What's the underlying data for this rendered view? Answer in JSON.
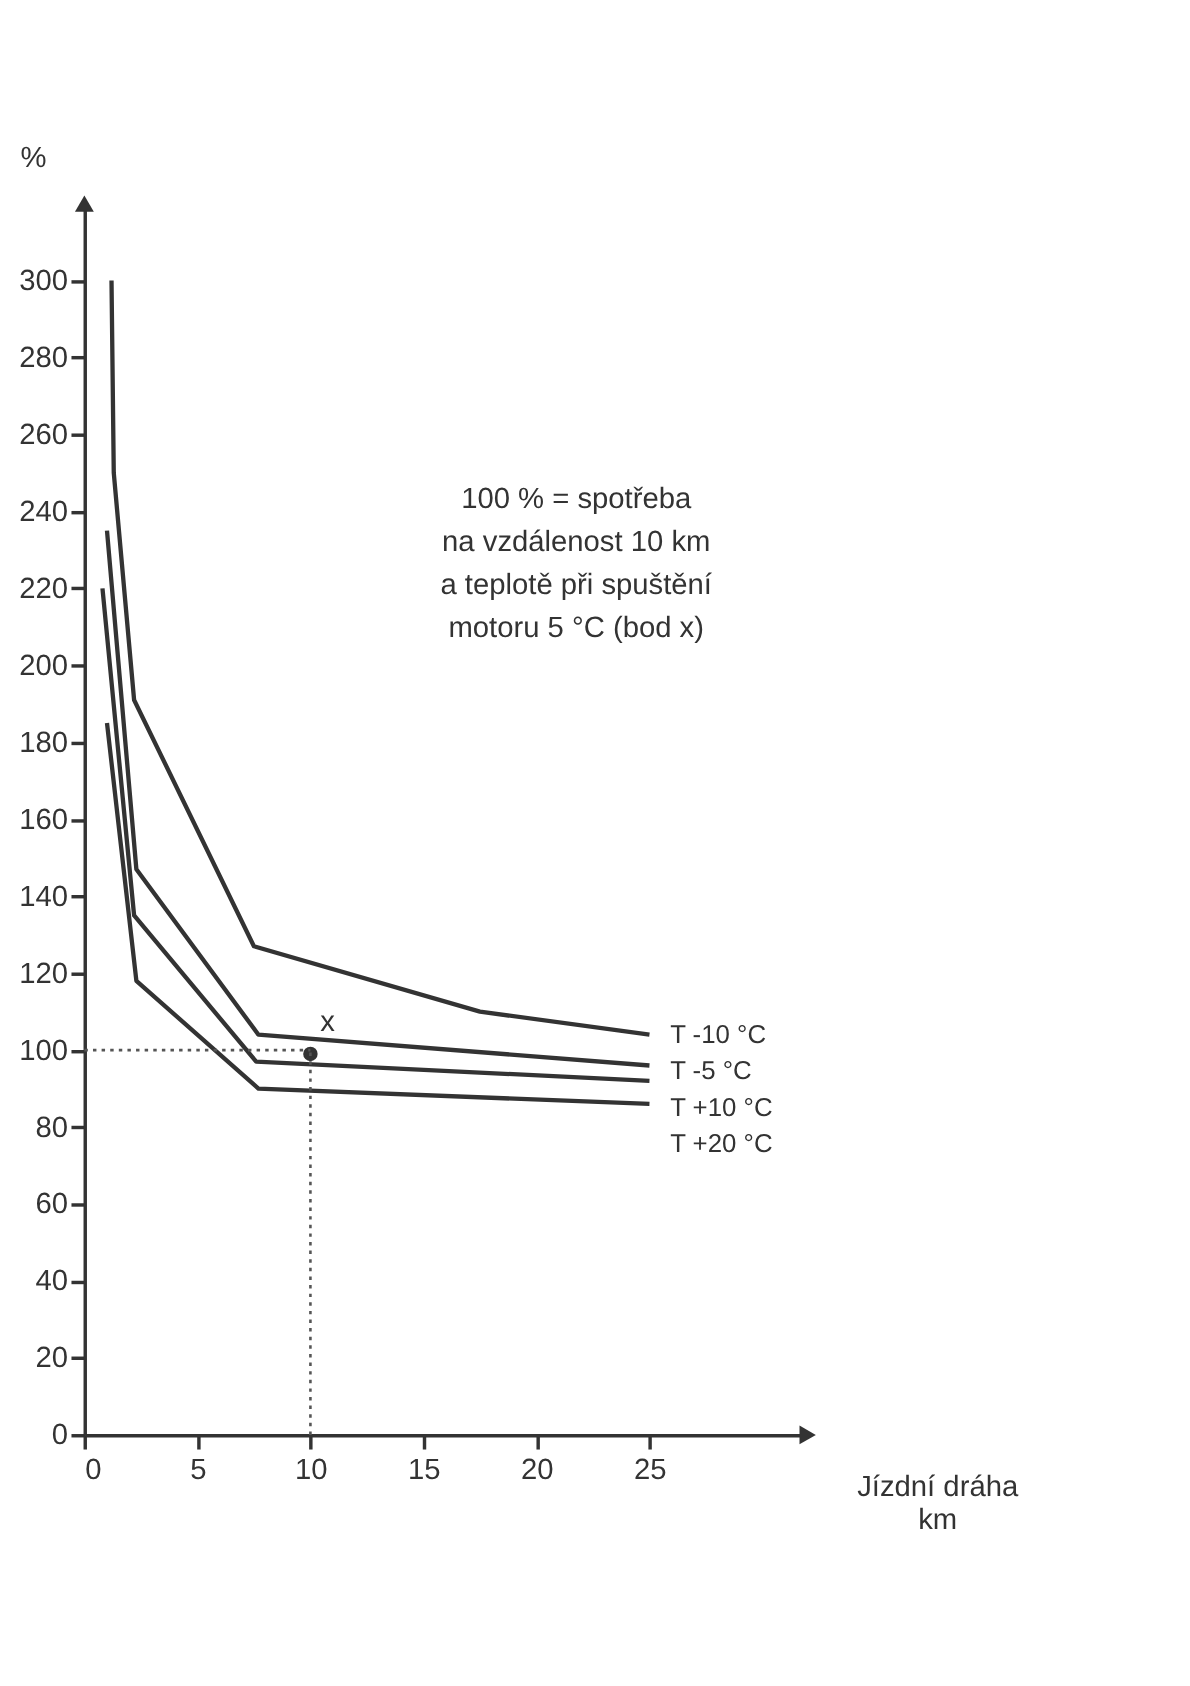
{
  "chart_data": {
    "type": "line",
    "xlabel": "Jízdní dráha\nkm",
    "ylabel": "%",
    "xlim": [
      0,
      32
    ],
    "ylim": [
      0,
      320
    ],
    "xticks": [
      0,
      5,
      10,
      15,
      20,
      25
    ],
    "yticks": [
      0,
      20,
      40,
      60,
      80,
      100,
      120,
      140,
      160,
      180,
      200,
      220,
      240,
      260,
      280,
      300
    ],
    "grid": false,
    "marker": "none",
    "line_style": "solid",
    "series": [
      {
        "name": "T -10 °C",
        "color": "#333333",
        "x": [
          1.2,
          1.3,
          2.2,
          7.5,
          17.5,
          25
        ],
        "values": [
          300,
          250,
          191,
          127,
          110,
          104
        ]
      },
      {
        "name": "T -5 °C",
        "color": "#333333",
        "x": [
          1.0,
          2.3,
          7.7,
          25
        ],
        "values": [
          235,
          147,
          104,
          96
        ]
      },
      {
        "name": "T +10 °C",
        "color": "#333333",
        "x": [
          0.8,
          2.2,
          7.6,
          25
        ],
        "values": [
          220,
          135,
          97,
          92
        ]
      },
      {
        "name": "T +20 °C",
        "color": "#333333",
        "x": [
          1.0,
          2.3,
          7.7,
          25
        ],
        "values": [
          185,
          118,
          90,
          86
        ]
      },
      {
        "type": "scatter",
        "marker": "circle",
        "color": "#333333",
        "x": [
          10
        ],
        "values": [
          99
        ]
      }
    ],
    "ref_lines": [
      {
        "axis": "y",
        "value": 100,
        "line_style": "dotted",
        "color": "#555555"
      },
      {
        "axis": "x",
        "value": 10,
        "line_style": "dotted",
        "color": "#555555"
      }
    ],
    "annotations": [
      "100 % = spotřeba\nna vzdálenost 10 km\na teplotě při spuštění\nmotoru 5 °C (bod x)",
      {
        "text": "x",
        "x": 10,
        "y": 100
      }
    ]
  }
}
